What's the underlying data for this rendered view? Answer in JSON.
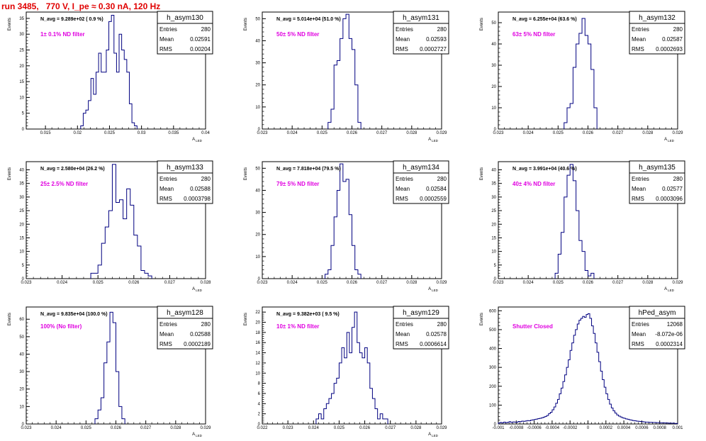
{
  "page_title": "run 3485,   770 V, I_pe ≈ 0.30 nA, 120 Hz",
  "stat_labels": {
    "entries": "Entries",
    "mean": "Mean",
    "rms": "RMS"
  },
  "colors": {
    "hist": "#000080",
    "note": "#e000e0",
    "title": "#e00000"
  },
  "chart_data": [
    {
      "type": "bar",
      "name": "h_asym130",
      "annotation": "N_avg = 9.289e+02 ( 0.9 %)",
      "note": "1± 0.1% ND filter",
      "stats": {
        "entries": "280",
        "mean": "0.02591",
        "rms": "0.00204"
      },
      "ylabel": "Events",
      "xlabel": "A_{LED}",
      "xlim": [
        0.012,
        0.04
      ],
      "ylim": [
        0,
        37
      ],
      "xticks": [
        0.015,
        0.02,
        0.025,
        0.03,
        0.035,
        0.04
      ],
      "xtick_labels": [
        "0.015",
        "0.02",
        "0.025",
        "0.03",
        "0.035",
        "0.04"
      ],
      "yticks": [
        0,
        5,
        10,
        15,
        20,
        25,
        30,
        35
      ],
      "bin_start": 0.0205,
      "bin_width": 0.0004,
      "values": [
        1,
        5,
        6,
        9,
        16,
        11,
        18,
        24,
        18,
        18,
        25,
        34,
        36,
        24,
        18,
        30,
        25,
        22,
        18,
        8,
        2,
        1
      ]
    },
    {
      "type": "bar",
      "name": "h_asym131",
      "annotation": "N_avg = 5.014e+04 (51.0 %)",
      "note": "50± 5% ND filter",
      "stats": {
        "entries": "280",
        "mean": "0.02593",
        "rms": "0.0002727"
      },
      "ylabel": "Events",
      "xlabel": "A_{LED}",
      "xlim": [
        0.023,
        0.029
      ],
      "ylim": [
        0,
        53
      ],
      "xticks": [
        0.023,
        0.024,
        0.025,
        0.026,
        0.027,
        0.028,
        0.029
      ],
      "xtick_labels": [
        "0.023",
        "0.024",
        "0.025",
        "0.026",
        "0.027",
        "0.028",
        "0.029"
      ],
      "yticks": [
        0,
        10,
        20,
        30,
        40,
        50
      ],
      "bin_start": 0.0252,
      "bin_width": 0.0001,
      "values": [
        3,
        9,
        29,
        31,
        41,
        50,
        52,
        41,
        36,
        20,
        3
      ]
    },
    {
      "type": "bar",
      "name": "h_asym132",
      "annotation": "N_avg = 6.255e+04 (63.6 %)",
      "note": "63± 5% ND filter",
      "stats": {
        "entries": "280",
        "mean": "0.02587",
        "rms": "0.0002693"
      },
      "ylabel": "Events",
      "xlabel": "A_{LED}",
      "xlim": [
        0.023,
        0.029
      ],
      "ylim": [
        0,
        55
      ],
      "xticks": [
        0.023,
        0.024,
        0.025,
        0.026,
        0.027,
        0.028,
        0.029
      ],
      "xtick_labels": [
        "0.023",
        "0.024",
        "0.025",
        "0.026",
        "0.027",
        "0.028",
        "0.029"
      ],
      "yticks": [
        0,
        10,
        20,
        30,
        40,
        50
      ],
      "bin_start": 0.0252,
      "bin_width": 0.0001,
      "values": [
        3,
        10,
        12,
        29,
        40,
        45,
        52,
        44,
        40,
        28,
        10
      ]
    },
    {
      "type": "bar",
      "name": "h_asym133",
      "annotation": "N_avg = 2.580e+04 (26.2 %)",
      "note": "25± 2.5% ND filter",
      "stats": {
        "entries": "280",
        "mean": "0.02588",
        "rms": "0.0003798"
      },
      "ylabel": "Events",
      "xlabel": "A_{LED}",
      "xlim": [
        0.023,
        0.028
      ],
      "ylim": [
        0,
        43
      ],
      "xticks": [
        0.023,
        0.024,
        0.025,
        0.026,
        0.027,
        0.028
      ],
      "xtick_labels": [
        "0.023",
        "0.024",
        "0.025",
        "0.026",
        "0.027",
        "0.028"
      ],
      "yticks": [
        0,
        5,
        10,
        15,
        20,
        25,
        30,
        35,
        40
      ],
      "bin_start": 0.0248,
      "bin_width": 0.0001,
      "values": [
        2,
        2,
        5,
        13,
        19,
        25,
        42,
        28,
        29,
        22,
        33,
        27,
        16,
        12,
        3,
        2,
        1
      ]
    },
    {
      "type": "bar",
      "name": "h_asym134",
      "annotation": "N_avg = 7.818e+04 (79.5 %)",
      "note": "79± 5% ND filter",
      "stats": {
        "entries": "280",
        "mean": "0.02584",
        "rms": "0.0002559"
      },
      "ylabel": "Events",
      "xlabel": "A_{LED}",
      "xlim": [
        0.023,
        0.029
      ],
      "ylim": [
        0,
        53
      ],
      "xticks": [
        0.023,
        0.024,
        0.025,
        0.026,
        0.027,
        0.028,
        0.029
      ],
      "xtick_labels": [
        "0.023",
        "0.024",
        "0.025",
        "0.026",
        "0.027",
        "0.028",
        "0.029"
      ],
      "yticks": [
        0,
        10,
        20,
        30,
        40,
        50
      ],
      "bin_start": 0.0251,
      "bin_width": 0.0001,
      "values": [
        2,
        4,
        15,
        28,
        40,
        52,
        44,
        45,
        29,
        15,
        4,
        2
      ]
    },
    {
      "type": "bar",
      "name": "h_asym135",
      "annotation": "N_avg = 3.991e+04 (40.6 %)",
      "note": "40± 4% ND filter",
      "stats": {
        "entries": "280",
        "mean": "0.02577",
        "rms": "0.0003096"
      },
      "ylabel": "Events",
      "xlabel": "A_{LED}",
      "xlim": [
        0.023,
        0.029
      ],
      "ylim": [
        0,
        43
      ],
      "xticks": [
        0.023,
        0.024,
        0.025,
        0.026,
        0.027,
        0.028,
        0.029
      ],
      "xtick_labels": [
        "0.023",
        "0.024",
        "0.025",
        "0.026",
        "0.027",
        "0.028",
        "0.029"
      ],
      "yticks": [
        0,
        5,
        10,
        15,
        20,
        25,
        30,
        35,
        40
      ],
      "bin_start": 0.0249,
      "bin_width": 0.0001,
      "values": [
        2,
        9,
        17,
        30,
        38,
        42,
        36,
        25,
        14,
        10,
        3,
        1,
        2
      ]
    },
    {
      "type": "bar",
      "name": "h_asym128",
      "annotation": "N_avg = 9.835e+04 (100.0 %)",
      "note": "100% (No filter)",
      "stats": {
        "entries": "280",
        "mean": "0.02588",
        "rms": "0.0002189"
      },
      "ylabel": "Events",
      "xlabel": "A_{LED}",
      "xlim": [
        0.023,
        0.029
      ],
      "ylim": [
        0,
        67
      ],
      "xticks": [
        0.023,
        0.024,
        0.025,
        0.026,
        0.027,
        0.028,
        0.029
      ],
      "xtick_labels": [
        "0.023",
        "0.024",
        "0.025",
        "0.026",
        "0.027",
        "0.028",
        "0.029"
      ],
      "yticks": [
        0,
        10,
        20,
        30,
        40,
        50,
        60
      ],
      "bin_start": 0.0253,
      "bin_width": 0.0001,
      "values": [
        3,
        8,
        15,
        35,
        47,
        64,
        58,
        30,
        10,
        3
      ]
    },
    {
      "type": "bar",
      "name": "h_asym129",
      "annotation": "N_avg = 9.382e+03 ( 9.5 %)",
      "note": "10± 1% ND filter",
      "stats": {
        "entries": "280",
        "mean": "0.02578",
        "rms": "0.0006614"
      },
      "ylabel": "Events",
      "xlabel": "A_{LED}",
      "xlim": [
        0.022,
        0.029
      ],
      "ylim": [
        0,
        23
      ],
      "xticks": [
        0.022,
        0.023,
        0.024,
        0.025,
        0.026,
        0.027,
        0.028,
        0.029
      ],
      "xtick_labels": [
        "0.022",
        "0.023",
        "0.024",
        "0.025",
        "0.026",
        "0.027",
        "0.028",
        "0.029"
      ],
      "yticks": [
        0,
        2,
        4,
        6,
        8,
        10,
        12,
        14,
        16,
        18,
        20,
        22
      ],
      "bin_start": 0.0241,
      "bin_width": 0.0001,
      "values": [
        1,
        2,
        1,
        3,
        4,
        5,
        6,
        8,
        9,
        12,
        15,
        13,
        18,
        14,
        19,
        22,
        16,
        14,
        13,
        15,
        12,
        7,
        5,
        3,
        1,
        2,
        1,
        1
      ]
    },
    {
      "type": "bar",
      "name": "hPed_asym",
      "annotation": "",
      "note": "Shutter Closed",
      "stats": {
        "entries": "12068",
        "mean": "-8.072e-06",
        "rms": "0.0002314"
      },
      "ylabel": "Events",
      "xlabel": "",
      "xlim": [
        -0.001,
        0.001
      ],
      "ylim": [
        0,
        620
      ],
      "xticks": [
        -0.001,
        -0.0008,
        -0.0006,
        -0.0004,
        -0.0002,
        0,
        0.0002,
        0.0004,
        0.0006,
        0.0008,
        0.001
      ],
      "xtick_labels": [
        "-0.001",
        "-0.0008",
        "-0.0006",
        "-0.0004",
        "-0.0002",
        "0",
        "0.0002",
        "0.0004",
        "0.0006",
        "0.0008",
        "0.001"
      ],
      "yticks": [
        0,
        100,
        200,
        300,
        400,
        500,
        600
      ],
      "bin_start": -0.001,
      "bin_width": 2e-05,
      "values": [
        5,
        8,
        6,
        10,
        7,
        9,
        12,
        8,
        11,
        10,
        9,
        13,
        12,
        15,
        14,
        16,
        18,
        17,
        20,
        22,
        24,
        26,
        28,
        30,
        33,
        36,
        40,
        45,
        55,
        62,
        75,
        90,
        110,
        130,
        160,
        190,
        225,
        260,
        300,
        340,
        390,
        430,
        470,
        500,
        530,
        550,
        560,
        570,
        565,
        580,
        585,
        560,
        520,
        480,
        430,
        380,
        330,
        280,
        235,
        195,
        160,
        130,
        105,
        85,
        70,
        58,
        48,
        42,
        37,
        33,
        30,
        27,
        25,
        22,
        20,
        18,
        17,
        15,
        14,
        13,
        12,
        11,
        10,
        10,
        9,
        9,
        8,
        8,
        7,
        7,
        6,
        6,
        6,
        5,
        5,
        4,
        4,
        4,
        3,
        3
      ]
    }
  ]
}
